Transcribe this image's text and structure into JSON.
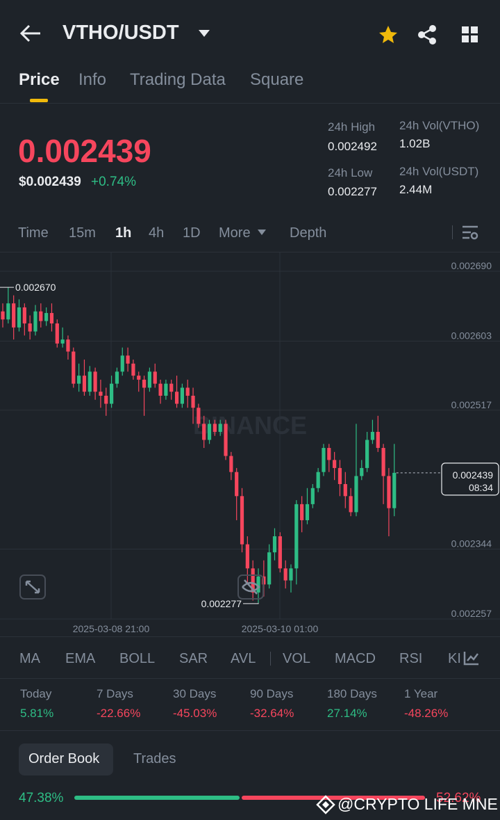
{
  "header": {
    "pair": "VTHO/USDT"
  },
  "tabs": [
    "Price",
    "Info",
    "Trading Data",
    "Square"
  ],
  "price": {
    "last": "0.002439",
    "usd": "$0.002439",
    "change": "+0.74%"
  },
  "stats": [
    {
      "label": "24h High",
      "value": "0.002492"
    },
    {
      "label": "24h Vol(VTHO)",
      "value": "1.02B"
    },
    {
      "label": "24h Low",
      "value": "0.002277"
    },
    {
      "label": "24h Vol(USDT)",
      "value": "2.44M"
    }
  ],
  "intervals": [
    "Time",
    "15m",
    "1h",
    "4h",
    "1D",
    "More",
    "Depth"
  ],
  "chart_data": {
    "type": "candlestick",
    "watermark": "BINANCE",
    "x_labels": [
      "2025-03-08 21:00",
      "2025-03-10 01:00"
    ],
    "high_marker": "0.002670",
    "low_marker": "0.002277",
    "last_price": "0.002439",
    "countdown": "08:34",
    "up_color": "#2ebd85",
    "down_color": "#f6465d",
    "ylim": [
      0.002257,
      0.00269
    ],
    "yticks": [
      {
        "value": 0.00269,
        "label": "0.002690"
      },
      {
        "value": 0.002603,
        "label": "0.002603"
      },
      {
        "value": 0.002517,
        "label": "0.002517"
      },
      {
        "value": 0.002344,
        "label": "0.002344"
      },
      {
        "value": 0.002257,
        "label": "0.002257"
      }
    ],
    "open": [
      0.00264,
      0.00263,
      0.00265,
      0.00262,
      0.002645,
      0.002625,
      0.002615,
      0.00264,
      0.002628,
      0.002638,
      0.002625,
      0.0026,
      0.002605,
      0.00259,
      0.00255,
      0.00256,
      0.00254,
      0.002565,
      0.00254,
      0.002535,
      0.002525,
      0.00255,
      0.002565,
      0.002585,
      0.002575,
      0.00256,
      0.002555,
      0.002545,
      0.002565,
      0.00255,
      0.002535,
      0.00255,
      0.00254,
      0.002525,
      0.002545,
      0.002535,
      0.00252,
      0.0025,
      0.00248,
      0.0025,
      0.00249,
      0.0025,
      0.00246,
      0.00244,
      0.00241,
      0.00235,
      0.00232,
      0.00229,
      0.00231,
      0.0023,
      0.00234,
      0.00236,
      0.00232,
      0.002305,
      0.00232,
      0.0024,
      0.00238,
      0.0024,
      0.00242,
      0.00244,
      0.00247,
      0.002455,
      0.002445,
      0.002425,
      0.00241,
      0.00239,
      0.002435,
      0.002445,
      0.00248,
      0.00249,
      0.00247,
      0.002435,
      0.002395
    ],
    "high": [
      0.00265,
      0.00267,
      0.00266,
      0.002655,
      0.00265,
      0.002635,
      0.002648,
      0.00265,
      0.002645,
      0.00265,
      0.00263,
      0.00262,
      0.00261,
      0.002595,
      0.002575,
      0.00258,
      0.002572,
      0.00257,
      0.002555,
      0.002545,
      0.00256,
      0.00257,
      0.002595,
      0.002595,
      0.00258,
      0.002565,
      0.00256,
      0.00257,
      0.002575,
      0.002555,
      0.002555,
      0.002555,
      0.00256,
      0.00255,
      0.002555,
      0.002545,
      0.002525,
      0.00251,
      0.002505,
      0.002505,
      0.002505,
      0.002505,
      0.002465,
      0.002445,
      0.00242,
      0.00236,
      0.00233,
      0.00232,
      0.00233,
      0.00235,
      0.00237,
      0.002365,
      0.00233,
      0.002325,
      0.002405,
      0.00241,
      0.00242,
      0.002425,
      0.002445,
      0.002475,
      0.002475,
      0.002465,
      0.002455,
      0.00244,
      0.00242,
      0.0025,
      0.002455,
      0.00249,
      0.002505,
      0.00251,
      0.002475,
      0.002445,
      0.002475
    ],
    "low": [
      0.00262,
      0.002625,
      0.002605,
      0.002615,
      0.00261,
      0.002605,
      0.00261,
      0.00262,
      0.002622,
      0.002615,
      0.002595,
      0.002595,
      0.00258,
      0.002545,
      0.00254,
      0.002535,
      0.002535,
      0.00253,
      0.00252,
      0.00251,
      0.00252,
      0.002545,
      0.00256,
      0.002565,
      0.002555,
      0.00254,
      0.00251,
      0.00254,
      0.002545,
      0.002525,
      0.00253,
      0.00253,
      0.00252,
      0.00252,
      0.00252,
      0.0025,
      0.002495,
      0.00247,
      0.002475,
      0.002485,
      0.002485,
      0.002455,
      0.00243,
      0.00238,
      0.00234,
      0.0023,
      0.00228,
      0.002277,
      0.002285,
      0.002295,
      0.00233,
      0.002315,
      0.002295,
      0.00229,
      0.0023,
      0.002365,
      0.002375,
      0.002395,
      0.002415,
      0.002435,
      0.00244,
      0.00243,
      0.00241,
      0.002395,
      0.002385,
      0.002385,
      0.00243,
      0.00244,
      0.002475,
      0.002465,
      0.0024,
      0.00236,
      0.002385
    ],
    "close": [
      0.00263,
      0.00265,
      0.00262,
      0.002645,
      0.002625,
      0.002615,
      0.00264,
      0.002628,
      0.002638,
      0.002625,
      0.0026,
      0.002605,
      0.00259,
      0.00255,
      0.00256,
      0.00254,
      0.002565,
      0.00254,
      0.002535,
      0.002525,
      0.00255,
      0.002565,
      0.002585,
      0.002575,
      0.00256,
      0.002555,
      0.002545,
      0.002565,
      0.00255,
      0.002535,
      0.00255,
      0.00254,
      0.002525,
      0.002545,
      0.002535,
      0.00252,
      0.0025,
      0.00248,
      0.0025,
      0.00249,
      0.0025,
      0.00246,
      0.00244,
      0.00241,
      0.00235,
      0.00232,
      0.00229,
      0.00231,
      0.0023,
      0.00234,
      0.00236,
      0.00232,
      0.002305,
      0.00232,
      0.0024,
      0.00238,
      0.0024,
      0.00242,
      0.00244,
      0.00247,
      0.002455,
      0.002445,
      0.002425,
      0.00241,
      0.00239,
      0.002435,
      0.002445,
      0.00248,
      0.00249,
      0.00247,
      0.002435,
      0.002395,
      0.002439
    ]
  },
  "indicators": [
    "MA",
    "EMA",
    "BOLL",
    "SAR",
    "AVL",
    "VOL",
    "MACD",
    "RSI",
    "KI"
  ],
  "performance": [
    {
      "period": "Today",
      "change": "5.81%"
    },
    {
      "period": "7 Days",
      "change": "-22.66%"
    },
    {
      "period": "30 Days",
      "change": "-45.03%"
    },
    {
      "period": "90 Days",
      "change": "-32.64%"
    },
    {
      "period": "180 Days",
      "change": "27.14%"
    },
    {
      "period": "1 Year",
      "change": "-48.26%"
    }
  ],
  "order_tabs": [
    "Order Book",
    "Trades"
  ],
  "depth": {
    "buy": "47.38%",
    "sell": "52.62%"
  },
  "watermark": "@CRYPTO LIFE MNE"
}
